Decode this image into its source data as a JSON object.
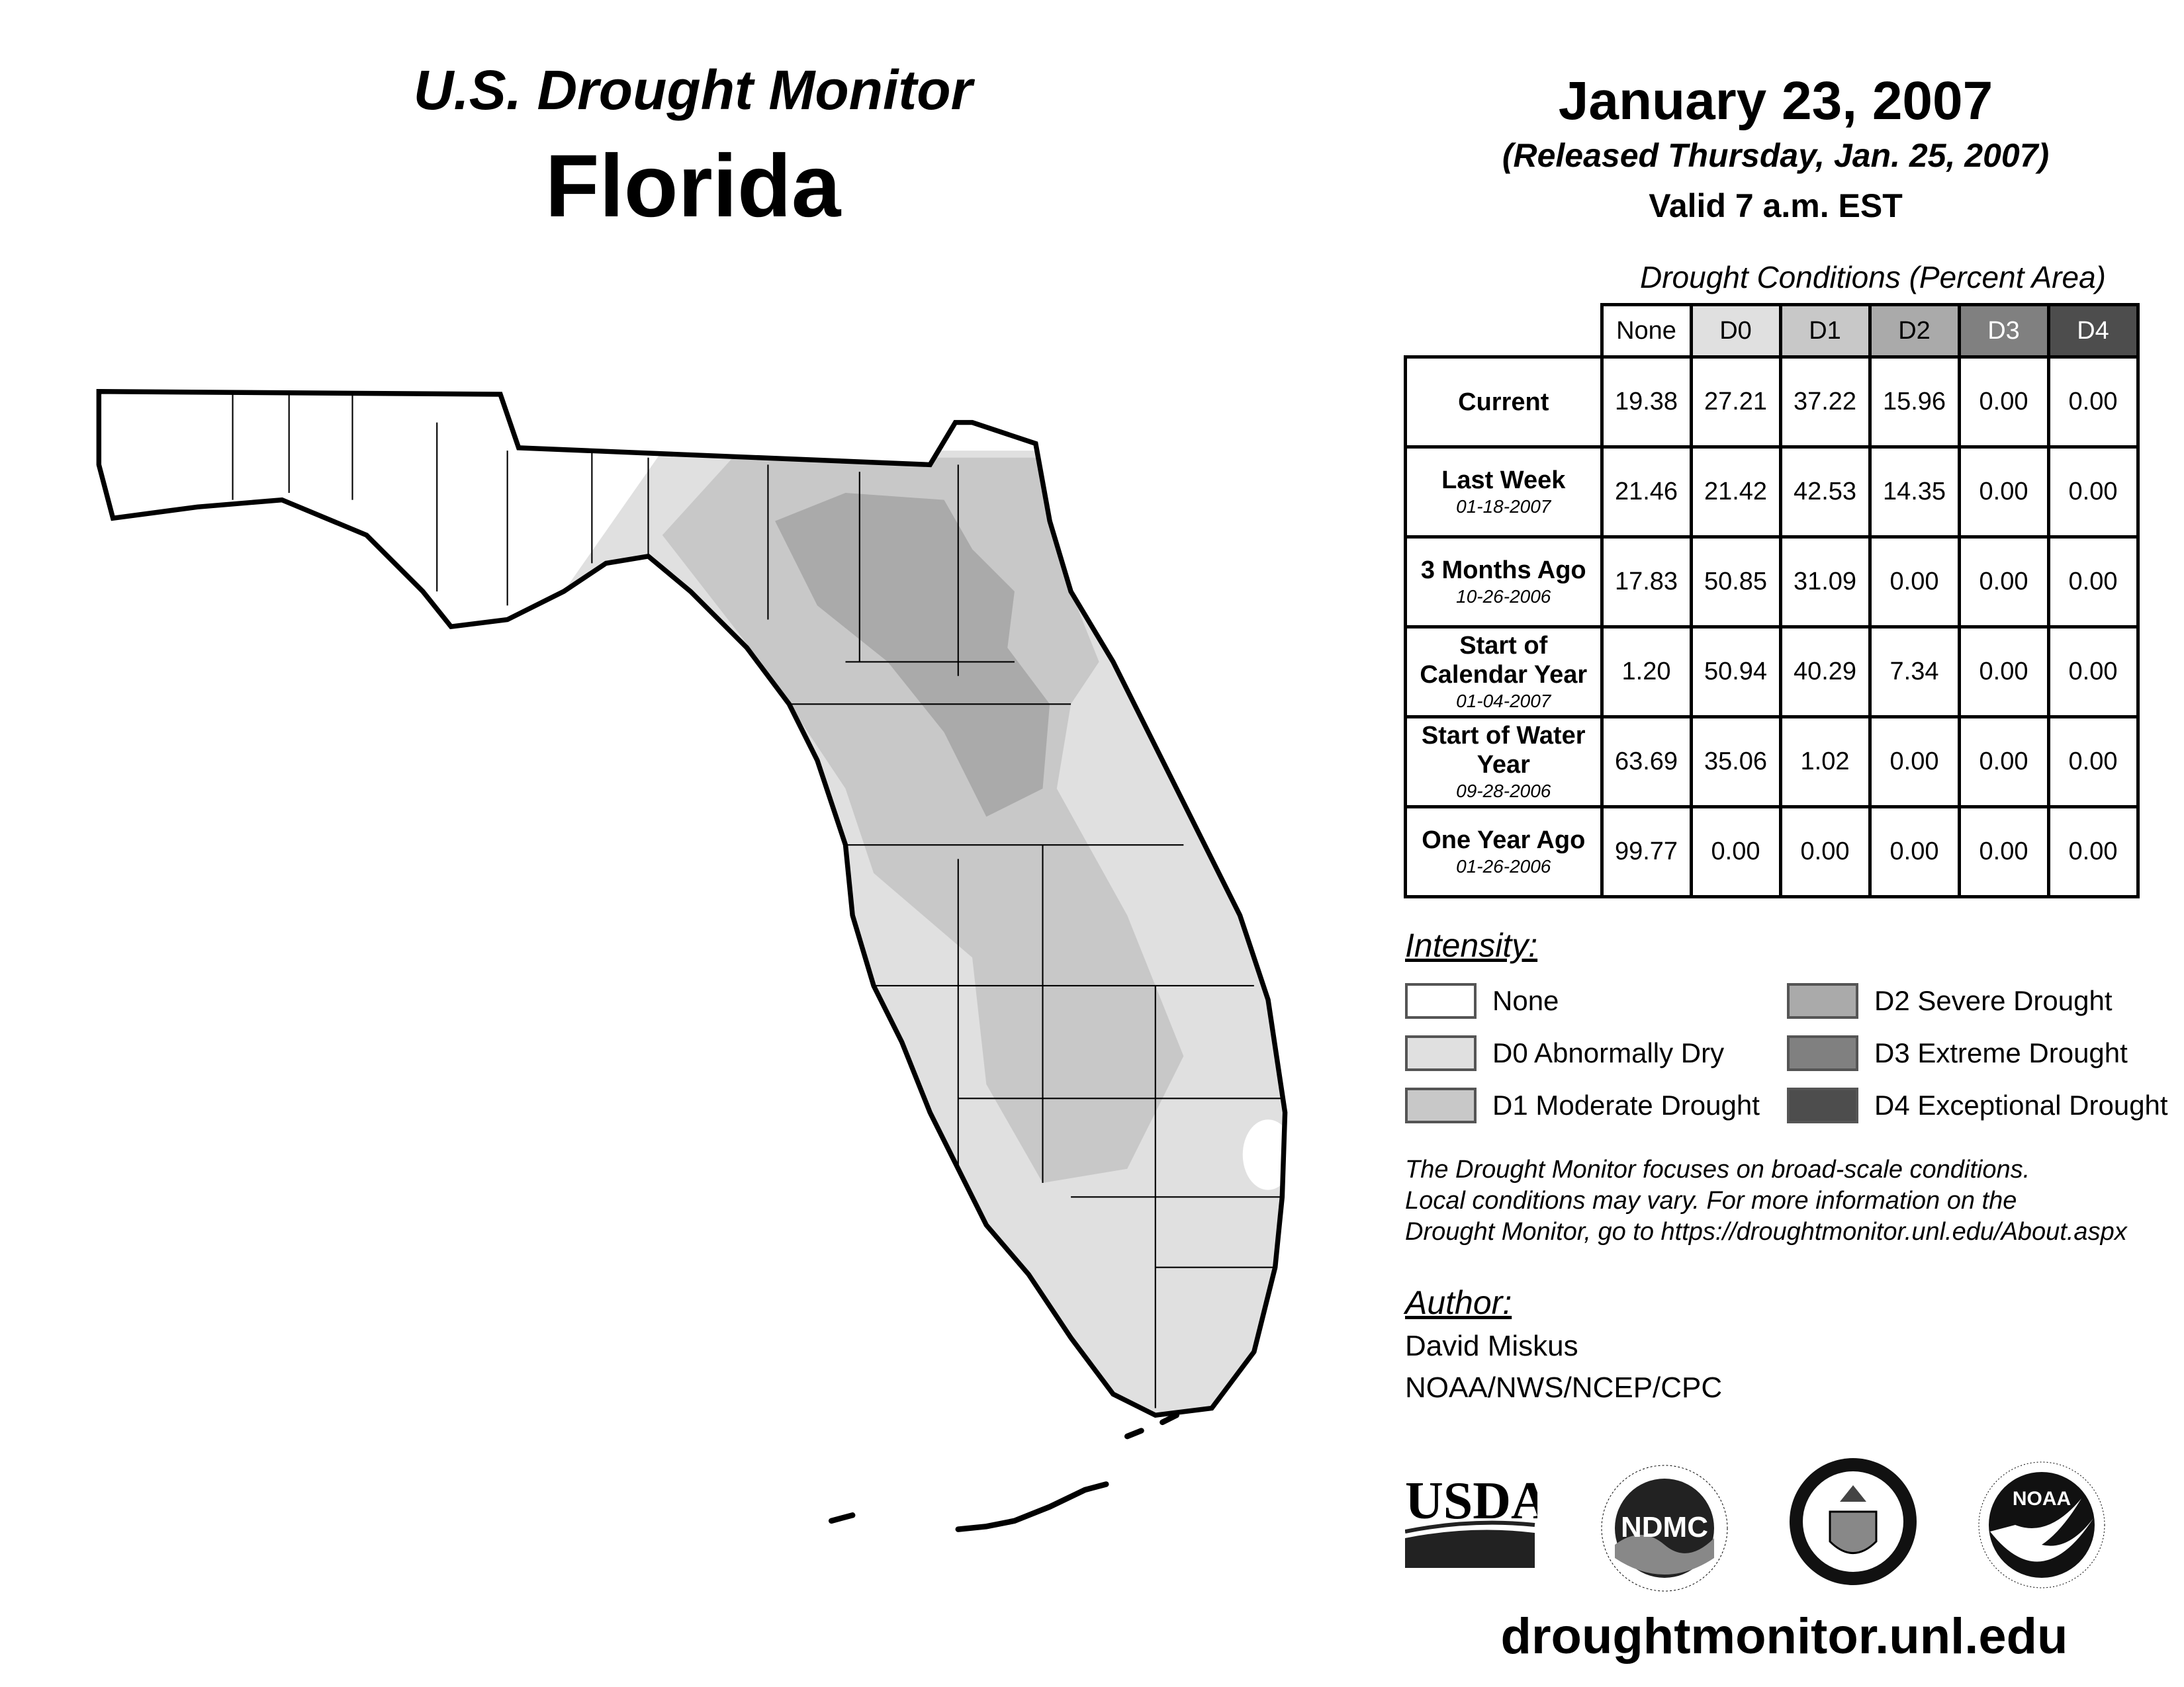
{
  "header": {
    "title": "U.S. Drought Monitor",
    "region": "Florida",
    "date": "January 23, 2007",
    "released": "(Released Thursday, Jan. 25, 2007)",
    "valid": "Valid 7 a.m. EST"
  },
  "table": {
    "caption": "Drought Conditions (Percent Area)",
    "columns": [
      "None",
      "D0",
      "D1",
      "D2",
      "D3",
      "D4"
    ],
    "rows": [
      {
        "label": "Current",
        "date": "",
        "values": [
          "19.38",
          "27.21",
          "37.22",
          "15.96",
          "0.00",
          "0.00"
        ]
      },
      {
        "label": "Last Week",
        "date": "01-18-2007",
        "values": [
          "21.46",
          "21.42",
          "42.53",
          "14.35",
          "0.00",
          "0.00"
        ]
      },
      {
        "label": "3 Months Ago",
        "date": "10-26-2006",
        "values": [
          "17.83",
          "50.85",
          "31.09",
          "0.00",
          "0.00",
          "0.00"
        ]
      },
      {
        "label": "Start of Calendar Year",
        "date": "01-04-2007",
        "values": [
          "1.20",
          "50.94",
          "40.29",
          "7.34",
          "0.00",
          "0.00"
        ]
      },
      {
        "label": "Start of Water Year",
        "date": "09-28-2006",
        "values": [
          "63.69",
          "35.06",
          "1.02",
          "0.00",
          "0.00",
          "0.00"
        ]
      },
      {
        "label": "One Year Ago",
        "date": "01-26-2006",
        "values": [
          "99.77",
          "0.00",
          "0.00",
          "0.00",
          "0.00",
          "0.00"
        ]
      }
    ]
  },
  "legend": {
    "title": "Intensity:",
    "items": [
      {
        "label": "None",
        "color": "#ffffff"
      },
      {
        "label": "D0 Abnormally Dry",
        "color": "#e0e0e0"
      },
      {
        "label": "D1 Moderate Drought",
        "color": "#c8c8c8"
      },
      {
        "label": "D2 Severe Drought",
        "color": "#aaaaaa"
      },
      {
        "label": "D3 Extreme Drought",
        "color": "#808080"
      },
      {
        "label": "D4 Exceptional Drought",
        "color": "#4d4d4d"
      }
    ]
  },
  "note": [
    "The Drought Monitor focuses on broad-scale conditions.",
    "Local conditions may vary. For more information on the",
    "Drought Monitor, go to https://droughtmonitor.unl.edu/About.aspx"
  ],
  "author": {
    "title": "Author:",
    "name": "David Miskus",
    "org": "NOAA/NWS/NCEP/CPC"
  },
  "logos": {
    "usda": "USDA",
    "ndmc": "NDMC",
    "ndmc_ring": "NATIONAL DROUGHT MITIGATION CENTER · UNIVERSITY OF NEBRASKA",
    "doc_ring": "DEPARTMENT OF COMMERCE · UNITED STATES OF AMERICA",
    "noaa": "NOAA",
    "noaa_ring": "NATIONAL OCEANIC AND ATMOSPHERIC ADMINISTRATION · U.S. DEPARTMENT OF COMMERCE"
  },
  "footer": {
    "url": "droughtmonitor.unl.edu"
  }
}
